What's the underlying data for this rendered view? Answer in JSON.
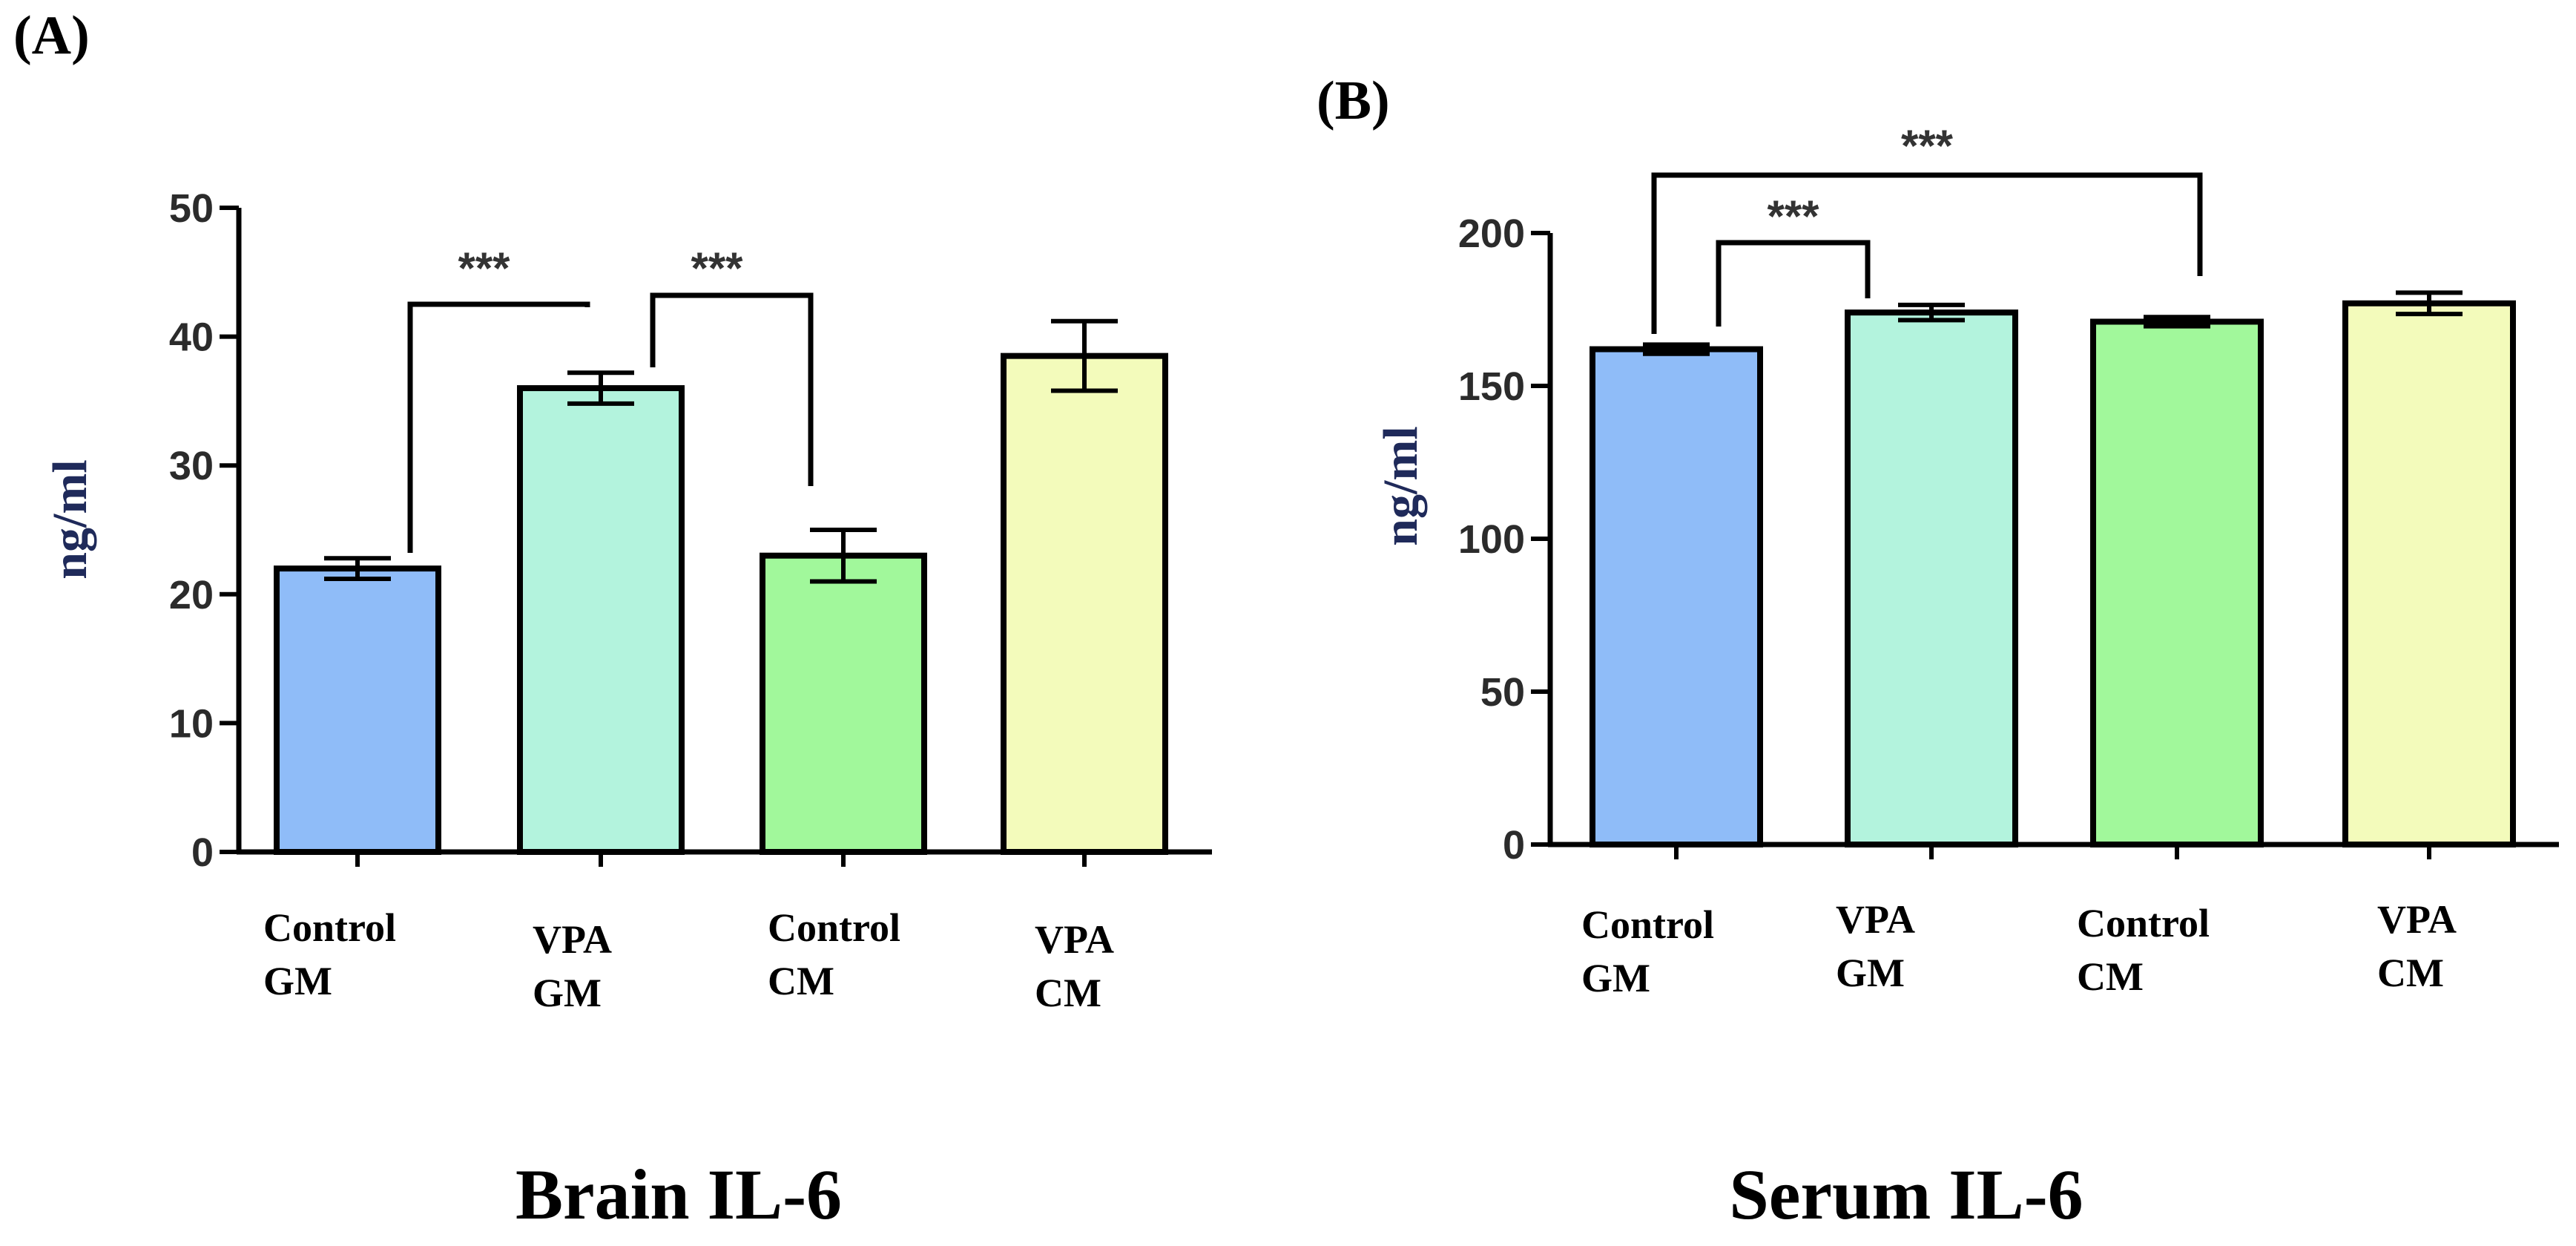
{
  "figure": {
    "panels": [
      "(A)",
      "(B)"
    ]
  },
  "chart_data": [
    {
      "type": "bar",
      "panel_label": "(A)",
      "title": "Brain IL-6",
      "xlabel": "",
      "ylabel": "ng/ml",
      "ylim": [
        0,
        50
      ],
      "yticks": [
        0,
        10,
        20,
        30,
        40,
        50
      ],
      "categories": [
        [
          "Control",
          "GM"
        ],
        [
          "VPA",
          "GM"
        ],
        [
          "Control",
          "CM"
        ],
        [
          "VPA",
          "CM"
        ]
      ],
      "values": [
        22,
        36,
        23,
        38.5
      ],
      "errors": [
        0.8,
        1.2,
        2.0,
        2.7
      ],
      "colors": [
        "#8fbcf8",
        "#b3f3dd",
        "#a1f89b",
        "#f3fbbb"
      ],
      "significance": [
        {
          "from": 0,
          "to": 1,
          "label": "***"
        },
        {
          "from": 1,
          "to": 2,
          "label": "***"
        }
      ]
    },
    {
      "type": "bar",
      "panel_label": "(B)",
      "title": "Serum IL-6",
      "xlabel": "",
      "ylabel": "ng/ml",
      "ylim": [
        0,
        200
      ],
      "yticks": [
        0,
        50,
        100,
        150,
        200
      ],
      "categories": [
        [
          "Control",
          "GM"
        ],
        [
          "VPA",
          "GM"
        ],
        [
          "Control",
          "CM"
        ],
        [
          "VPA",
          "CM"
        ]
      ],
      "values": [
        162,
        174,
        171,
        177
      ],
      "errors": [
        1.5,
        2.5,
        1.5,
        3.5
      ],
      "colors": [
        "#8fbcf8",
        "#b3f3dd",
        "#a1f89b",
        "#f3fbbb"
      ],
      "significance": [
        {
          "from": 0,
          "to": 1,
          "label": "***"
        },
        {
          "from": 0,
          "to": 2,
          "label": "***"
        }
      ]
    }
  ]
}
